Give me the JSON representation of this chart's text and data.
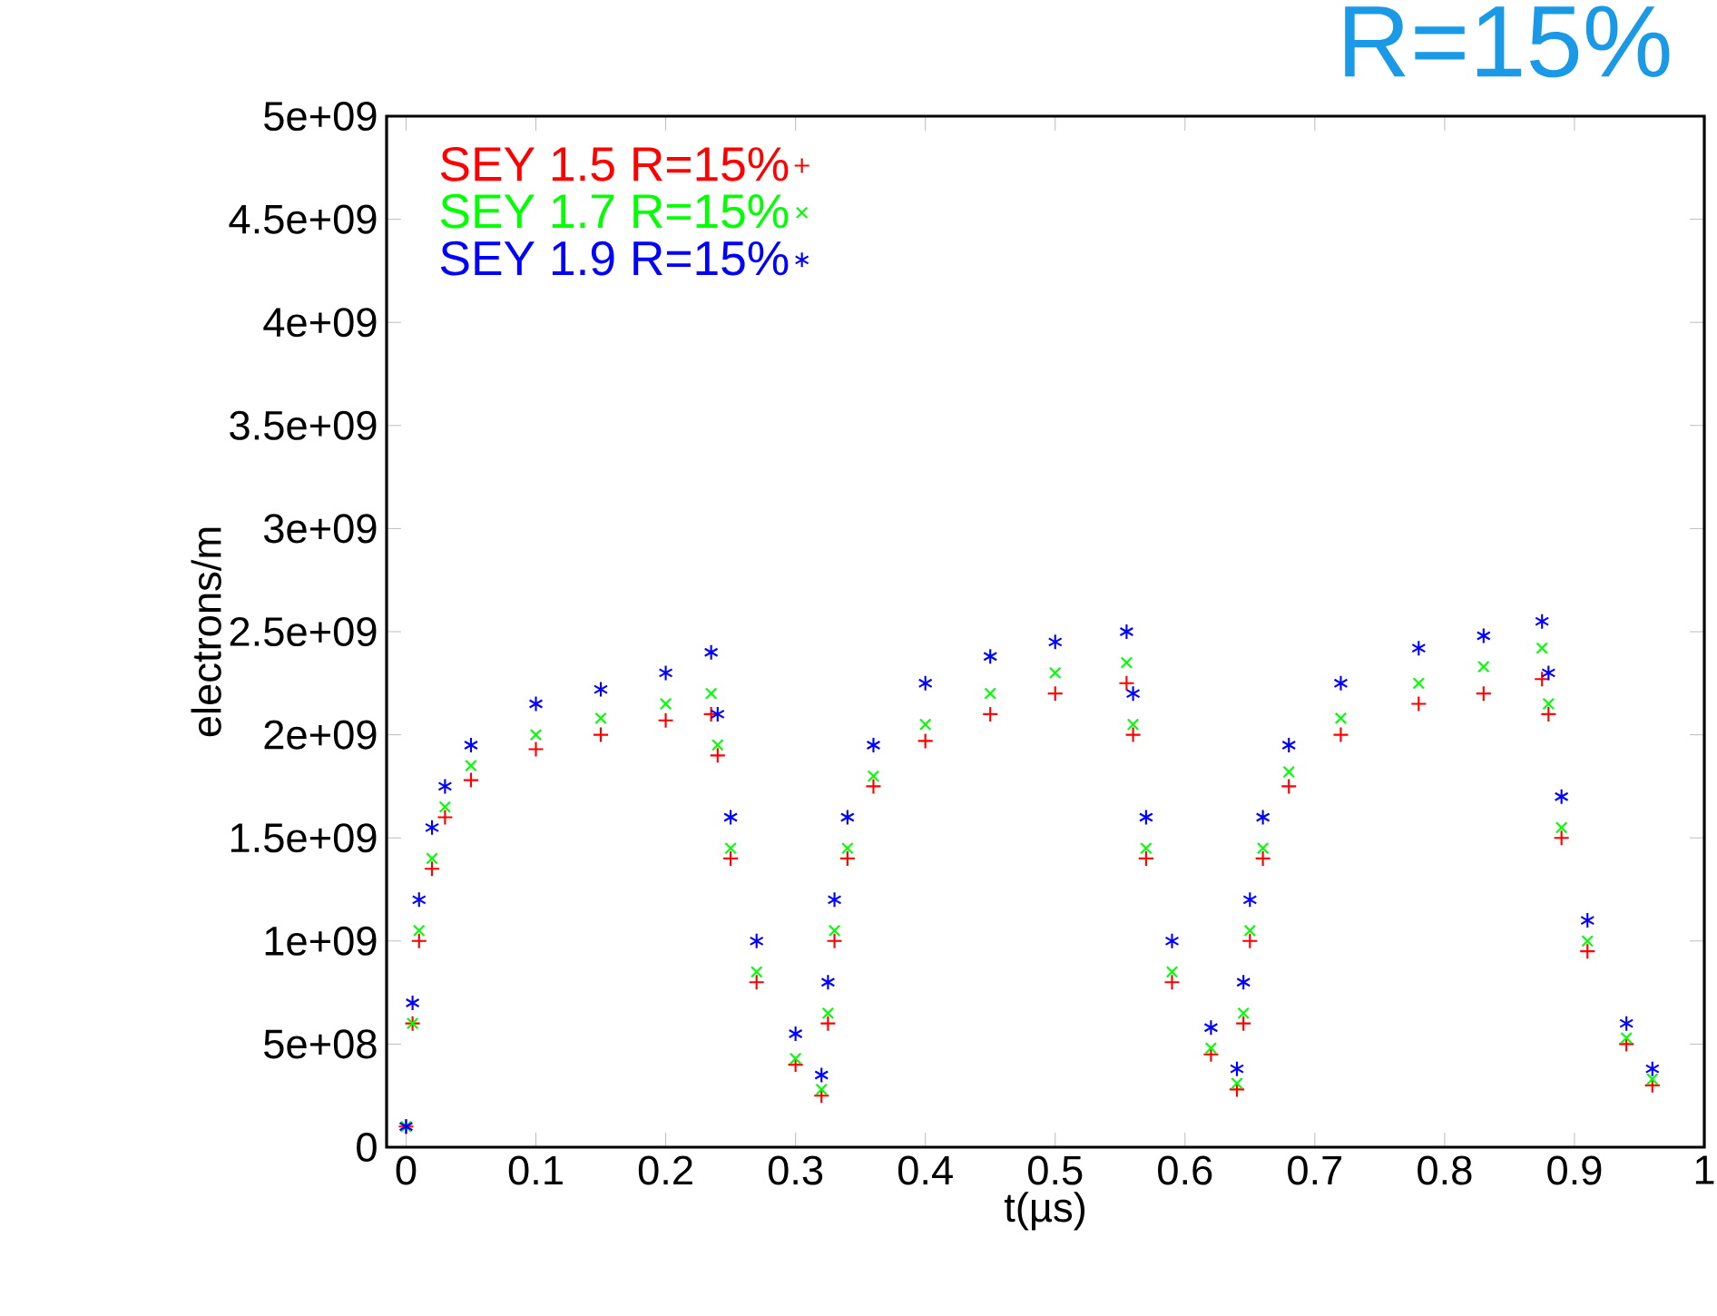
{
  "chart_data": {
    "type": "scatter",
    "title": "R=15%",
    "xlabel": "t(µs)",
    "ylabel": "electrons/m",
    "x": [
      0,
      0.005,
      0.01,
      0.02,
      0.03,
      0.05,
      0.1,
      0.15,
      0.2,
      0.235,
      0.24,
      0.25,
      0.27,
      0.3,
      0.32,
      0.325,
      0.33,
      0.34,
      0.36,
      0.4,
      0.45,
      0.5,
      0.555,
      0.56,
      0.57,
      0.59,
      0.62,
      0.64,
      0.645,
      0.65,
      0.66,
      0.68,
      0.72,
      0.78,
      0.83,
      0.875,
      0.88,
      0.89,
      0.91,
      0.94,
      0.96
    ],
    "series": [
      {
        "name": "SEY 1.5 R=15%",
        "color": "#ff0000",
        "values": [
          100000000.0,
          600000000.0,
          1000000000.0,
          1350000000.0,
          1600000000.0,
          1780000000.0,
          1930000000.0,
          2000000000.0,
          2070000000.0,
          2100000000.0,
          1900000000.0,
          1400000000.0,
          800000000.0,
          400000000.0,
          250000000.0,
          600000000.0,
          1000000000.0,
          1400000000.0,
          1750000000.0,
          1970000000.0,
          2100000000.0,
          2200000000.0,
          2250000000.0,
          2000000000.0,
          1400000000.0,
          800000000.0,
          450000000.0,
          280000000.0,
          600000000.0,
          1000000000.0,
          1400000000.0,
          1750000000.0,
          2000000000.0,
          2150000000.0,
          2200000000.0,
          2270000000.0,
          2100000000.0,
          1500000000.0,
          950000000.0,
          500000000.0,
          300000000.0
        ]
      },
      {
        "name": "SEY 1.7 R=15%",
        "color": "#00ff00",
        "values": [
          100000000.0,
          600000000.0,
          1050000000.0,
          1400000000.0,
          1650000000.0,
          1850000000.0,
          2000000000.0,
          2080000000.0,
          2150000000.0,
          2200000000.0,
          1950000000.0,
          1450000000.0,
          850000000.0,
          430000000.0,
          280000000.0,
          650000000.0,
          1050000000.0,
          1450000000.0,
          1800000000.0,
          2050000000.0,
          2200000000.0,
          2300000000.0,
          2350000000.0,
          2050000000.0,
          1450000000.0,
          850000000.0,
          480000000.0,
          310000000.0,
          650000000.0,
          1050000000.0,
          1450000000.0,
          1820000000.0,
          2080000000.0,
          2250000000.0,
          2330000000.0,
          2420000000.0,
          2150000000.0,
          1550000000.0,
          1000000000.0,
          530000000.0,
          330000000.0
        ]
      },
      {
        "name": "SEY 1.9 R=15%",
        "color": "#0000ff",
        "values": [
          100000000.0,
          700000000.0,
          1200000000.0,
          1550000000.0,
          1750000000.0,
          1950000000.0,
          2150000000.0,
          2220000000.0,
          2300000000.0,
          2400000000.0,
          2100000000.0,
          1600000000.0,
          1000000000.0,
          550000000.0,
          350000000.0,
          800000000.0,
          1200000000.0,
          1600000000.0,
          1950000000.0,
          2250000000.0,
          2380000000.0,
          2450000000.0,
          2500000000.0,
          2200000000.0,
          1600000000.0,
          1000000000.0,
          580000000.0,
          380000000.0,
          800000000.0,
          1200000000.0,
          1600000000.0,
          1950000000.0,
          2250000000.0,
          2420000000.0,
          2480000000.0,
          2550000000.0,
          2300000000.0,
          1700000000.0,
          1100000000.0,
          600000000.0,
          380000000.0
        ]
      }
    ],
    "xlim": [
      -0.015,
      1.0
    ],
    "ylim": [
      0,
      5000000000.0
    ],
    "xticks": [
      0,
      0.1,
      0.2,
      0.3,
      0.4,
      0.5,
      0.6,
      0.7,
      0.8,
      0.9,
      1
    ],
    "yticks": [
      0,
      {
        "value": 500000000.0,
        "label": "5e+08"
      },
      {
        "value": 1000000000.0,
        "label": "1e+09"
      },
      {
        "value": 1500000000.0,
        "label": "1.5e+09"
      },
      {
        "value": 2000000000.0,
        "label": "2e+09"
      },
      {
        "value": 2500000000.0,
        "label": "2.5e+09"
      },
      {
        "value": 3000000000.0,
        "label": "3e+09"
      },
      {
        "value": 3500000000.0,
        "label": "3.5e+09"
      },
      {
        "value": 4000000000.0,
        "label": "4e+09"
      },
      {
        "value": 4500000000.0,
        "label": "4.5e+09"
      },
      {
        "value": 5000000000.0,
        "label": "5e+09"
      }
    ],
    "grid": false,
    "legend": "top left"
  }
}
